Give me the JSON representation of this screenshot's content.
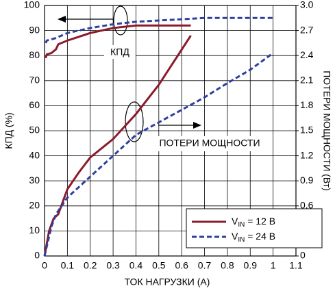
{
  "chart_data": {
    "type": "line",
    "xlabel": "ТОК НАГРУЗКИ (A)",
    "ylabel": "КПД (%)",
    "y2label": "ПОТЕРИ МОЩНОСТИ (Вт)",
    "annotations": [
      "КПД",
      "ПОТЕРИ МОЩНОСТИ"
    ],
    "xlim": [
      0,
      1.1
    ],
    "xticks": [
      0,
      0.1,
      0.2,
      0.3,
      0.4,
      0.5,
      0.6,
      0.7,
      0.8,
      0.9,
      1,
      1.1
    ],
    "ylim": [
      0,
      100
    ],
    "yticks": [
      0,
      10,
      20,
      30,
      40,
      50,
      60,
      70,
      80,
      90,
      100
    ],
    "y2lim": [
      0,
      3
    ],
    "y2ticks": [
      0,
      0.3,
      0.6,
      0.9,
      1.2,
      1.5,
      1.8,
      2.1,
      2.4,
      2.7,
      {
        "value": 3,
        "label": "3.0"
      }
    ],
    "grid": true,
    "legend": [
      {
        "symbol": "V",
        "subscript": "IN",
        "text": " = 12 В",
        "color": "#8b1a2b",
        "dashed": false
      },
      {
        "symbol": "V",
        "subscript": "IN",
        "text": " = 24 В",
        "color": "#2e3f9e",
        "dashed": true
      }
    ],
    "series": [
      {
        "color": "#8b1a2b",
        "dashed": false,
        "axis": "y",
        "x": [
          0.005,
          0.01,
          0.03,
          0.05,
          0.06,
          0.1,
          0.2,
          0.3,
          0.4,
          0.5,
          0.64
        ],
        "values": [
          79,
          80.5,
          81,
          82.5,
          84.5,
          86,
          89,
          91,
          92,
          92,
          92
        ]
      },
      {
        "color": "#2e3f9e",
        "dashed": true,
        "axis": "y",
        "x": [
          0.005,
          0.01,
          0.05,
          0.1,
          0.2,
          0.3,
          0.4,
          0.5,
          0.6,
          0.7,
          0.8,
          0.9,
          1
        ],
        "values": [
          85,
          86,
          87,
          89,
          91,
          92.5,
          93.5,
          94,
          94.5,
          95,
          95,
          95,
          95
        ]
      },
      {
        "color": "#8b1a2b",
        "dashed": false,
        "axis": "y2",
        "x": [
          0,
          0.02,
          0.04,
          0.06,
          0.08,
          0.1,
          0.15,
          0.2,
          0.3,
          0.4,
          0.5,
          0.64
        ],
        "values": [
          0,
          0.3,
          0.45,
          0.5,
          0.65,
          0.8,
          1.0,
          1.18,
          1.4,
          1.7,
          2.05,
          2.64
        ]
      },
      {
        "color": "#2e3f9e",
        "dashed": true,
        "axis": "y2",
        "x": [
          0,
          0.03,
          0.05,
          0.1,
          0.2,
          0.3,
          0.4,
          0.5,
          0.6,
          0.7,
          0.8,
          0.9,
          1
        ],
        "values": [
          0,
          0.35,
          0.5,
          0.7,
          0.95,
          1.2,
          1.45,
          1.6,
          1.75,
          1.9,
          2.07,
          2.23,
          2.43
        ]
      }
    ]
  }
}
